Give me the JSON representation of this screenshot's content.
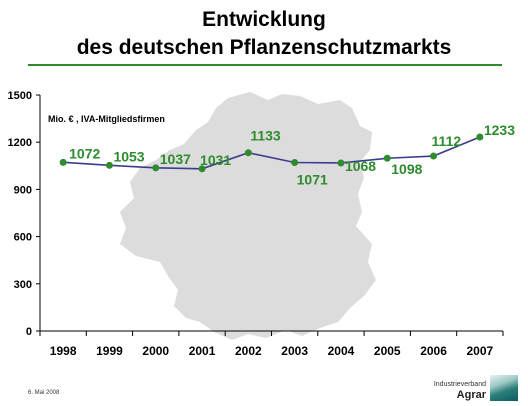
{
  "title_line1": "Entwicklung",
  "title_line2": "des deutschen Pflanzenschutzmarkts",
  "date": "6. Mai 2008",
  "logo": {
    "top_text": "Industrieverband",
    "main_text": "Agrar"
  },
  "colors": {
    "line": "#3c3c8c",
    "marker": "#2e8b2e",
    "label": "#2e8b2e",
    "map": "#d9d9d9",
    "rule": "#2e8b2e"
  },
  "chart_data": {
    "type": "line",
    "title": "Entwicklung des deutschen Pflanzenschutzmarkts",
    "annotation": "Mio. € , IVA-Mitgliedsfirmen",
    "categories": [
      "1998",
      "1999",
      "2000",
      "2001",
      "2002",
      "2003",
      "2004",
      "2005",
      "2006",
      "2007"
    ],
    "values": [
      1072,
      1053,
      1037,
      1031,
      1133,
      1071,
      1068,
      1098,
      1112,
      1233
    ],
    "ylim": [
      0,
      1500
    ],
    "yticks": [
      0,
      300,
      600,
      900,
      1200,
      1500
    ],
    "xlabel": "",
    "ylabel": "",
    "grid": false,
    "legend": "none"
  }
}
